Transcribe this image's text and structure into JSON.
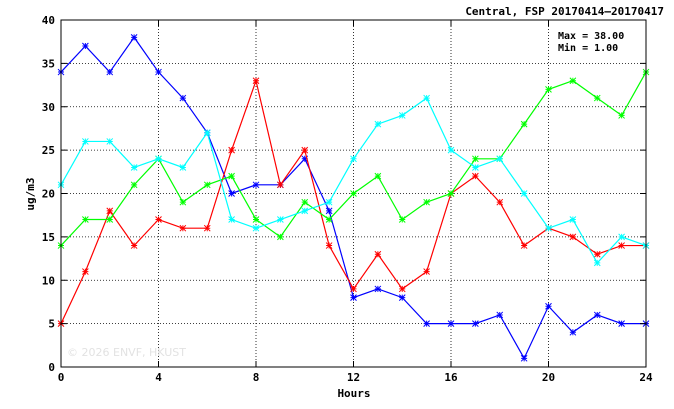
{
  "chart_data": {
    "type": "line",
    "title": "Central, FSP 20170414–20170417",
    "xlabel": "Hours",
    "ylabel": "ug/m3",
    "xlim": [
      0,
      24
    ],
    "ylim": [
      0,
      40
    ],
    "xticks": [
      0,
      4,
      8,
      12,
      16,
      20,
      24
    ],
    "yticks": [
      0,
      5,
      10,
      15,
      20,
      25,
      30,
      35,
      40
    ],
    "grid": true,
    "stats": {
      "max": "Max = 38.00",
      "min": "Min =  1.00"
    },
    "watermark": "© 2026 ENVF, HKUST",
    "x": [
      0,
      1,
      2,
      3,
      4,
      5,
      6,
      7,
      8,
      9,
      10,
      11,
      12,
      13,
      14,
      15,
      16,
      17,
      18,
      19,
      20,
      21,
      22,
      23,
      24
    ],
    "series": [
      {
        "color": "#0000ff",
        "values": [
          34,
          37,
          34,
          38,
          34,
          31,
          27,
          20,
          21,
          21,
          24,
          18,
          8,
          9,
          8,
          5,
          5,
          5,
          6,
          1,
          7,
          4,
          6,
          5,
          5
        ]
      },
      {
        "color": "#ff0000",
        "values": [
          5,
          11,
          18,
          14,
          17,
          16,
          16,
          25,
          33,
          21,
          25,
          14,
          9,
          13,
          9,
          11,
          20,
          22,
          19,
          14,
          16,
          15,
          13,
          14,
          14
        ]
      },
      {
        "color": "#00ff00",
        "values": [
          14,
          17,
          17,
          21,
          24,
          19,
          21,
          22,
          17,
          15,
          19,
          17,
          20,
          22,
          17,
          19,
          20,
          24,
          24,
          28,
          32,
          33,
          31,
          29,
          34
        ]
      },
      {
        "color": "#00ffff",
        "values": [
          21,
          26,
          26,
          23,
          24,
          23,
          27,
          17,
          16,
          17,
          18,
          19,
          24,
          28,
          29,
          31,
          25,
          23,
          24,
          20,
          16,
          17,
          12,
          15,
          14
        ]
      }
    ]
  }
}
